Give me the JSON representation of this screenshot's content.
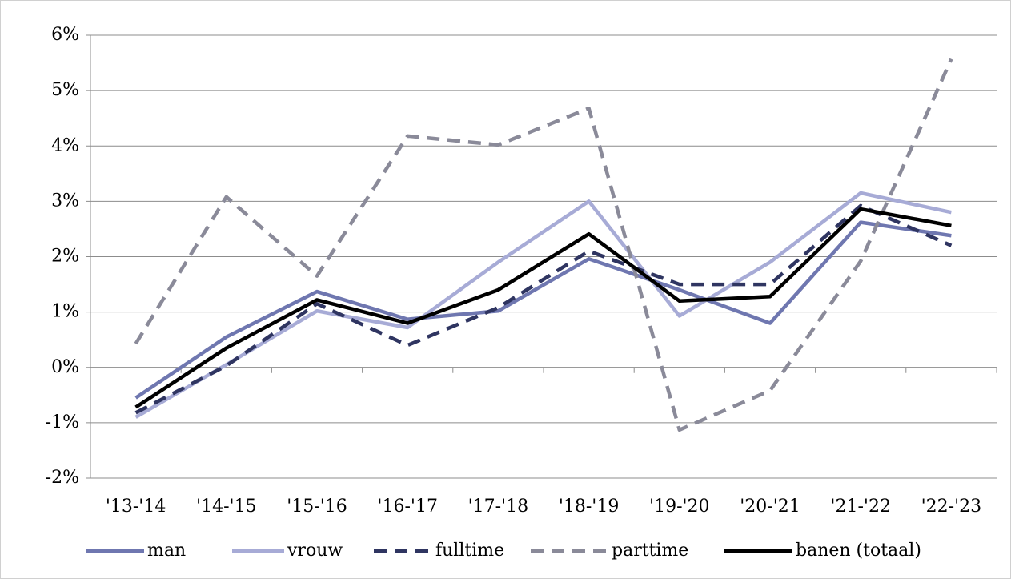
{
  "chart_data": {
    "type": "line",
    "categories": [
      "'13-'14",
      "'14-'15",
      "'15-'16",
      "'16-'17",
      "'17-'18",
      "'18-'19",
      "'19-'20",
      "'20-'21",
      "'21-'22",
      "'22-'23"
    ],
    "series": [
      {
        "name": "man",
        "color": "#6f77b0",
        "dash": false,
        "values": [
          -0.55,
          0.55,
          1.37,
          0.87,
          1.02,
          1.96,
          1.4,
          0.8,
          2.62,
          2.38
        ]
      },
      {
        "name": "vrouw",
        "color": "#a7abd6",
        "dash": false,
        "values": [
          -0.9,
          0.05,
          1.02,
          0.72,
          1.9,
          3.0,
          0.93,
          1.9,
          3.15,
          2.8
        ]
      },
      {
        "name": "fulltime",
        "color": "#2f3561",
        "dash": true,
        "values": [
          -0.82,
          0.03,
          1.15,
          0.4,
          1.08,
          2.1,
          1.5,
          1.5,
          2.92,
          2.2
        ]
      },
      {
        "name": "parttime",
        "color": "#8a8a99",
        "dash": true,
        "values": [
          0.43,
          3.08,
          1.65,
          4.18,
          4.02,
          4.68,
          -1.13,
          -0.42,
          1.92,
          5.57
        ]
      },
      {
        "name": "banen (totaal)",
        "color": "#000000",
        "dash": false,
        "values": [
          -0.72,
          0.35,
          1.22,
          0.8,
          1.4,
          2.41,
          1.2,
          1.28,
          2.86,
          2.56
        ]
      }
    ],
    "ylim": [
      -2,
      6
    ],
    "yticks": [
      {
        "value": -2,
        "label": "-2%"
      },
      {
        "value": -1,
        "label": "-1%"
      },
      {
        "value": 0,
        "label": "0%"
      },
      {
        "value": 1,
        "label": "1%"
      },
      {
        "value": 2,
        "label": "2%"
      },
      {
        "value": 3,
        "label": "3%"
      },
      {
        "value": 4,
        "label": "4%"
      },
      {
        "value": 5,
        "label": "5%"
      },
      {
        "value": 6,
        "label": "6%"
      }
    ],
    "grid": true,
    "legend": "bottom"
  }
}
